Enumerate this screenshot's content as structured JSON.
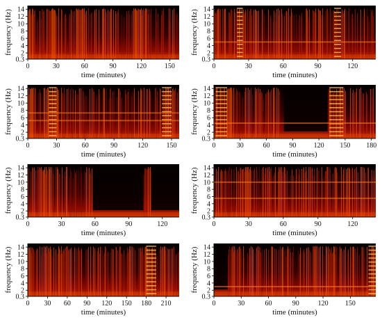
{
  "chart_data": [
    {
      "type": "heatmap",
      "xlabel": "time (minutes)",
      "ylabel": "frequency (Hz)",
      "x_ticks": [
        0,
        30,
        60,
        90,
        120,
        150
      ],
      "y_ticks": [
        "0.3",
        "2",
        "4",
        "6",
        "8",
        "10",
        "12",
        "14"
      ],
      "xlim": [
        0,
        160
      ],
      "ylim": [
        0.3,
        15
      ],
      "bright_bands": [
        [
          0,
          8
        ],
        [
          20,
          30
        ],
        [
          50,
          62
        ],
        [
          112,
          128
        ]
      ],
      "dark_regions": [],
      "harmonic_regions": [],
      "horizontal_lines": []
    },
    {
      "type": "heatmap",
      "xlabel": "time (minutes)",
      "ylabel": "frequency (Hz)",
      "x_ticks": [
        0,
        30,
        60,
        90,
        120
      ],
      "y_ticks": [
        "0.3",
        "2",
        "4",
        "6",
        "8",
        "10",
        "12",
        "14"
      ],
      "xlim": [
        0,
        140
      ],
      "ylim": [
        0.3,
        15
      ],
      "bright_bands": [
        [
          0,
          5
        ],
        [
          20,
          28
        ],
        [
          103,
          113
        ]
      ],
      "dark_regions": [],
      "harmonic_regions": [
        [
          20,
          25
        ],
        [
          104,
          110
        ]
      ],
      "horizontal_lines": [
        5
      ]
    },
    {
      "type": "heatmap",
      "xlabel": "time (minutes)",
      "ylabel": "frequency (Hz)",
      "x_ticks": [
        0,
        30,
        60,
        90,
        120,
        150
      ],
      "y_ticks": [
        "0.3",
        "2",
        "4",
        "6",
        "8",
        "10",
        "12",
        "14"
      ],
      "xlim": [
        0,
        158
      ],
      "ylim": [
        0.3,
        15
      ],
      "bright_bands": [
        [
          0,
          8
        ],
        [
          20,
          32
        ],
        [
          140,
          152
        ]
      ],
      "dark_regions": [],
      "harmonic_regions": [
        [
          22,
          30
        ],
        [
          140,
          150
        ]
      ],
      "horizontal_lines": [
        5.2,
        7.3
      ]
    },
    {
      "type": "heatmap",
      "xlabel": "time (minutes)",
      "ylabel": "frequency (Hz)",
      "x_ticks": [
        0,
        30,
        60,
        90,
        120,
        150,
        180
      ],
      "y_ticks": [
        "0.3",
        "2",
        "4",
        "6",
        "8",
        "10",
        "12",
        "14"
      ],
      "xlim": [
        0,
        185
      ],
      "ylim": [
        0.3,
        15
      ],
      "bright_bands": [
        [
          0,
          20
        ],
        [
          130,
          150
        ]
      ],
      "dark_regions": [
        [
          80,
          130
        ]
      ],
      "harmonic_regions": [
        [
          2,
          15
        ],
        [
          132,
          148
        ]
      ],
      "horizontal_lines": [
        4.5
      ]
    },
    {
      "type": "heatmap",
      "xlabel": "time (minutes)",
      "ylabel": "frequency (Hz)",
      "x_ticks": [
        0,
        30,
        60,
        90,
        120
      ],
      "y_ticks": [
        "0.3",
        "2",
        "4",
        "6",
        "8",
        "10",
        "12",
        "14"
      ],
      "xlim": [
        0,
        135
      ],
      "ylim": [
        0.3,
        15
      ],
      "bright_bands": [
        [
          8,
          20
        ],
        [
          103,
          110
        ]
      ],
      "dark_regions": [
        [
          58,
          103
        ],
        [
          110,
          135
        ]
      ],
      "harmonic_regions": [],
      "horizontal_lines": []
    },
    {
      "type": "heatmap",
      "xlabel": "time (minutes)",
      "ylabel": "frequency (Hz)",
      "x_ticks": [
        0,
        30,
        60,
        90,
        120
      ],
      "y_ticks": [
        "0.3",
        "2",
        "4",
        "6",
        "8",
        "10",
        "12",
        "14"
      ],
      "xlim": [
        0,
        140
      ],
      "ylim": [
        0.3,
        15
      ],
      "bright_bands": [
        [
          20,
          30
        ],
        [
          55,
          62
        ]
      ],
      "dark_regions": [],
      "harmonic_regions": [],
      "horizontal_lines": [
        5.5,
        10
      ]
    },
    {
      "type": "heatmap",
      "xlabel": "time (minutes)",
      "ylabel": "frequency (Hz)",
      "x_ticks": [
        0,
        30,
        60,
        90,
        120,
        150,
        180,
        210
      ],
      "y_ticks": [
        "0.3",
        "2",
        "4",
        "6",
        "8",
        "10",
        "12",
        "14"
      ],
      "xlim": [
        0,
        230
      ],
      "ylim": [
        0.3,
        15
      ],
      "bright_bands": [
        [
          0,
          10
        ],
        [
          25,
          35
        ],
        [
          45,
          60
        ],
        [
          170,
          195
        ]
      ],
      "dark_regions": [],
      "harmonic_regions": [
        [
          180,
          195
        ]
      ],
      "horizontal_lines": []
    },
    {
      "type": "heatmap",
      "xlabel": "time (minutes)",
      "ylabel": "frequency (Hz)",
      "x_ticks": [
        0,
        30,
        60,
        90,
        120,
        150
      ],
      "y_ticks": [
        "0.3",
        "2",
        "4",
        "6",
        "8",
        "10",
        "12",
        "14"
      ],
      "xlim": [
        0,
        178
      ],
      "ylim": [
        0.3,
        15
      ],
      "bright_bands": [
        [
          18,
          30
        ],
        [
          125,
          135
        ],
        [
          170,
          178
        ]
      ],
      "dark_regions": [
        [
          0,
          15
        ]
      ],
      "harmonic_regions": [
        [
          170,
          178
        ]
      ],
      "horizontal_lines": [
        3
      ]
    }
  ],
  "colors": {
    "dark": "#000000",
    "mid": "#8a0a00",
    "bright": "#e84a00",
    "hot": "#ffd060"
  }
}
